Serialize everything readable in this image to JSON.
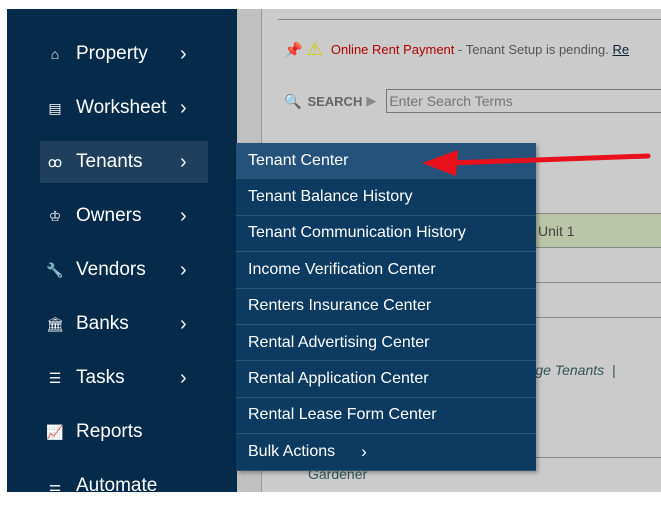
{
  "sidebar": {
    "items": [
      {
        "label": "Property",
        "icon": "home-icon",
        "glyph": "⌂",
        "chevron": true
      },
      {
        "label": "Worksheet",
        "icon": "table-icon",
        "glyph": "▤",
        "chevron": true
      },
      {
        "label": "Tenants",
        "icon": "users-icon",
        "glyph": "ꝏ",
        "chevron": true,
        "active": true
      },
      {
        "label": "Owners",
        "icon": "crown-icon",
        "glyph": "♔",
        "chevron": true
      },
      {
        "label": "Vendors",
        "icon": "wrench-icon",
        "glyph": "🔧",
        "chevron": true
      },
      {
        "label": "Banks",
        "icon": "bank-icon",
        "glyph": "🏛",
        "chevron": true
      },
      {
        "label": "Tasks",
        "icon": "tasks-icon",
        "glyph": "☰",
        "chevron": true
      },
      {
        "label": "Reports",
        "icon": "chart-icon",
        "glyph": "📈",
        "chevron": false
      },
      {
        "label": "Automate",
        "icon": "sliders-icon",
        "glyph": "⚌",
        "chevron": false
      }
    ]
  },
  "notice": {
    "title": "Online Rent Payment",
    "text": " - Tenant Setup is pending. ",
    "link": "Re"
  },
  "search": {
    "label": "SEARCH",
    "placeholder": "Enter Search Terms"
  },
  "content": {
    "unit": "Unit 1",
    "links": "anage Tenants  |  ",
    "gardener": "Gardener"
  },
  "menu": {
    "items": [
      {
        "label": "Tenant Center",
        "active": true
      },
      {
        "label": "Tenant Balance History"
      },
      {
        "label": "Tenant Communication History"
      },
      {
        "label": "Income Verification Center"
      },
      {
        "label": "Renters Insurance Center"
      },
      {
        "label": "Rental Advertising Center"
      },
      {
        "label": "Rental Application Center"
      },
      {
        "label": "Rental Lease Form Center"
      },
      {
        "label": "Bulk Actions",
        "chevron": true
      }
    ]
  },
  "colors": {
    "sidebar": "#052a4a",
    "menu": "#0c3a61",
    "arrow": "#e8101c",
    "alert": "#b00000"
  }
}
